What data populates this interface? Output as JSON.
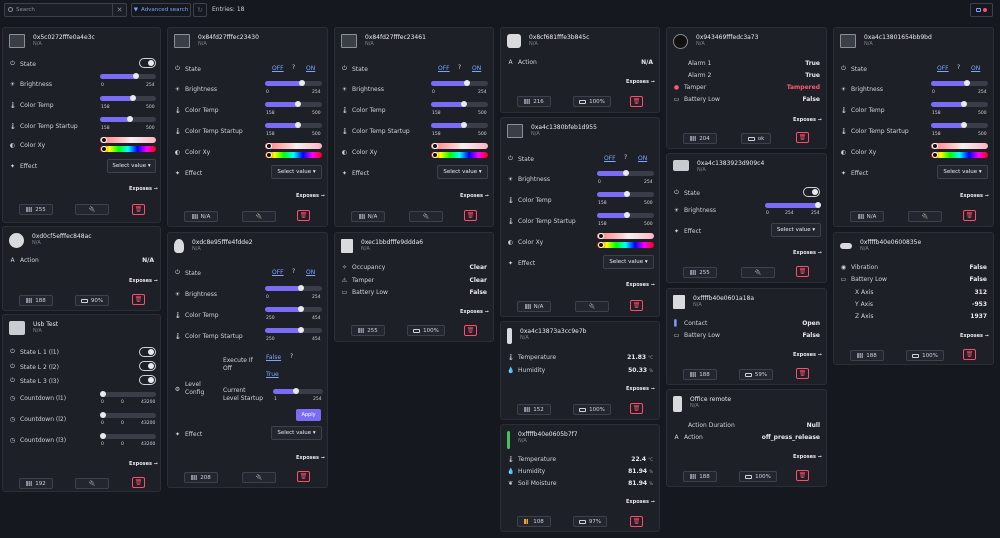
{
  "top": {
    "search_placeholder": "Search",
    "clear": "✕",
    "advanced": "Advanced search",
    "reset": "↻",
    "entries": "Entries: 18"
  },
  "common": {
    "exposes": "Exposes",
    "select": "Select value",
    "off": "OFF",
    "on": "ON",
    "q": "?",
    "apply": "Apply"
  },
  "labels": {
    "state": "State",
    "brightness": "Brightness",
    "color_temp": "Color Temp",
    "color_temp_startup": "Color Temp Startup",
    "color_xy": "Color Xy",
    "effect": "Effect",
    "action": "Action",
    "occupancy": "Occupancy",
    "tamper": "Tamper",
    "battery_low": "Battery Low",
    "alarm1": "Alarm 1",
    "alarm2": "Alarm 2",
    "temperature": "Temperature",
    "humidity": "Humidity",
    "soil_moisture": "Soil Moisture",
    "contact": "Contact",
    "vibration": "Vibration",
    "x_axis": "X Axis",
    "y_axis": "Y Axis",
    "z_axis": "Z Axis",
    "action_duration": "Action Duration",
    "execute_if_off": "Execute If Off",
    "level_config": "Level Config",
    "current_level_startup": "Current Level Startup",
    "state_l1": "State L 1 (l1)",
    "state_l2": "State L 2 (l2)",
    "state_l3": "State L 3 (l3)",
    "countdown_l1": "Countdown (l1)",
    "countdown_l2": "Countdown (l2)",
    "countdown_l3": "Countdown (l3)"
  },
  "ticks": {
    "zero": "0",
    "b254": "254",
    "ct158": "158",
    "ct500": "500",
    "ct250": "250",
    "ct454": "454",
    "cd43200": "43200",
    "one": "1"
  },
  "devices": {
    "d1": {
      "name": "0x5c0272fffe0a4e3c",
      "sub": "N/A",
      "signal": "255",
      "brightness": 0.65,
      "ct": 0.6,
      "cts": 0.55
    },
    "d2": {
      "name": "0xd0cf5efffec848ac",
      "sub": "N/A",
      "action": "N/A",
      "signal": "188",
      "battery": "90%"
    },
    "d3": {
      "name": "Usb Test",
      "sub": "N/A",
      "signal": "192"
    },
    "d4": {
      "name": "0x84fd27fffec23430",
      "sub": "N/A",
      "signal": "N/A",
      "brightness": 0.68,
      "ct": 0.6,
      "cts": 0.6
    },
    "d5": {
      "name": "0xdc8e95fffe4fdde2",
      "sub": "N/A",
      "signal": "208",
      "brightness": 0.66,
      "ct": 0.66,
      "cts": 0.66,
      "execute": "False",
      "current_level": "True",
      "level": 0.45
    },
    "d6": {
      "name": "0x84fd27fffec23461",
      "sub": "N/A",
      "signal": "N/A",
      "brightness": 0.66,
      "ct": 0.6,
      "cts": 0.6
    },
    "d7": {
      "name": "0xec1bbdfffe9ddda6",
      "sub": "N/A",
      "occupancy": "Clear",
      "tamper": "Clear",
      "battery_low": "False",
      "signal": "255",
      "battery": "100%"
    },
    "d8": {
      "name": "0x8cf681fffe3b845c",
      "sub": "N/A",
      "action": "N/A",
      "signal": "216",
      "battery": "100%"
    },
    "d9": {
      "name": "0xa4c1380bfeb1d955",
      "sub": "N/A",
      "signal": "N/A",
      "brightness": 0.5,
      "ct": 0.55,
      "cts": 0.55
    },
    "d10": {
      "name": "0xa4c13873a3cc9e7b",
      "sub": "N/A",
      "temperature": "21.83",
      "humidity": "50.33",
      "temp_unit": "°C",
      "hum_unit": "%",
      "signal": "152",
      "battery": "100%"
    },
    "d11": {
      "name": "0xffffb40e0605b7f7",
      "sub": "N/A",
      "temperature": "22.4",
      "humidity": "81.94",
      "soil": "81.94",
      "temp_unit": "°C",
      "hum_unit": "%",
      "signal": "108",
      "battery": "97%"
    },
    "d12": {
      "name": "0x943469fffedc3a73",
      "sub": "N/A",
      "alarm1": "True",
      "alarm2": "True",
      "tamper": "Tampered",
      "battery_low": "False",
      "signal": "204",
      "battery": "ok"
    },
    "d13": {
      "name": "0xa4c1383923d909c4",
      "sub": "N/A",
      "signal": "255",
      "brightness": 1.0
    },
    "d14": {
      "name": "0xffffb40e0601a18a",
      "sub": "N/A",
      "contact": "Open",
      "battery_low": "False",
      "signal": "188",
      "battery": "59%"
    },
    "d15": {
      "name": "Office remote",
      "sub": "N/A",
      "action_duration": "Null",
      "action": "off_press_release",
      "signal": "188",
      "battery": "100%"
    },
    "d16": {
      "name": "0xa4c13801654bb9bd",
      "sub": "N/A",
      "signal": "N/A",
      "brightness": 0.66,
      "ct": 0.6,
      "cts": 0.6
    },
    "d17": {
      "name": "0xffffb40e0600835e",
      "sub": "N/A",
      "vibration": "False",
      "battery_low": "False",
      "x": "312",
      "y": "-953",
      "z": "1937",
      "signal": "188",
      "battery": "100%"
    }
  },
  "colors": {
    "accent": "#7b6cf6",
    "link": "#7aa6ff",
    "danger": "#ff4c6a"
  }
}
